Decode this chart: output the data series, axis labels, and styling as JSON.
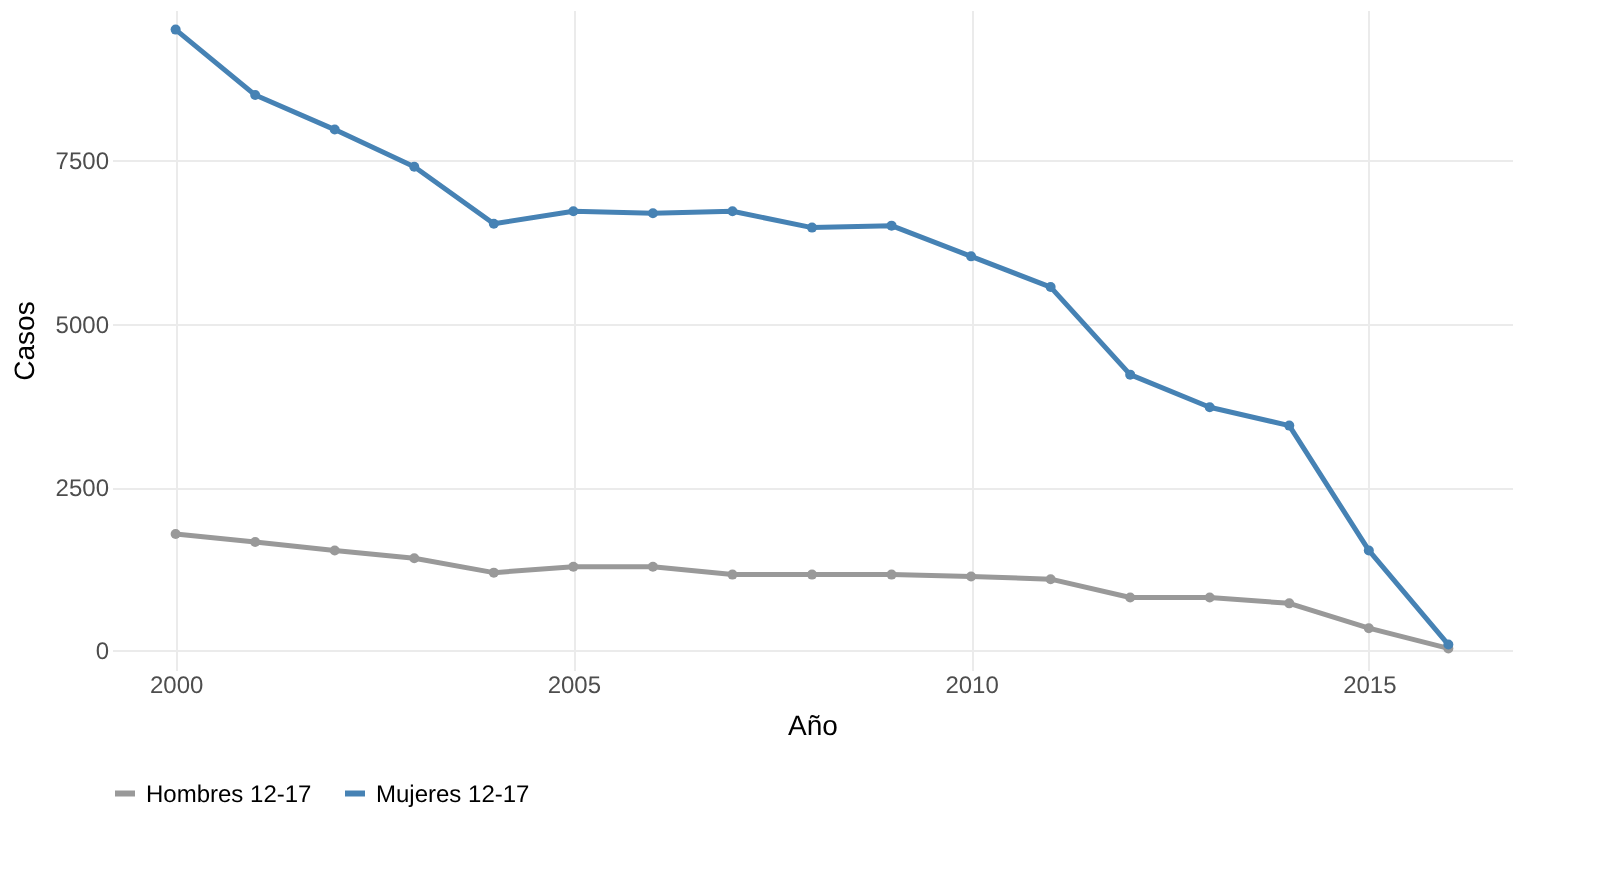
{
  "chart_data": {
    "type": "line",
    "xlabel": "Año",
    "ylabel": "Casos",
    "x": [
      2000,
      2001,
      2002,
      2003,
      2004,
      2005,
      2006,
      2007,
      2008,
      2009,
      2010,
      2011,
      2012,
      2013,
      2014,
      2015,
      2016
    ],
    "series": [
      {
        "name": "Hombres 12-17",
        "color": "#999999",
        "values": [
          1780,
          1660,
          1530,
          1410,
          1190,
          1280,
          1280,
          1160,
          1160,
          1160,
          1130,
          1090,
          810,
          810,
          720,
          340,
          30
        ]
      },
      {
        "name": "Mujeres 12-17",
        "color": "#4682b4",
        "values": [
          9500,
          8500,
          7970,
          7400,
          6530,
          6720,
          6690,
          6720,
          6470,
          6500,
          6030,
          5560,
          4220,
          3720,
          3440,
          1530,
          90
        ]
      }
    ],
    "xlim": [
      1999.2,
      2016.8
    ],
    "xticks": [
      2000,
      2005,
      2010,
      2015
    ],
    "ylim": [
      -300,
      9800
    ],
    "yticks": [
      0,
      2500,
      5000,
      7500
    ],
    "grid": true,
    "legend": "bottom",
    "marker": "circle",
    "line_style": "solid"
  }
}
